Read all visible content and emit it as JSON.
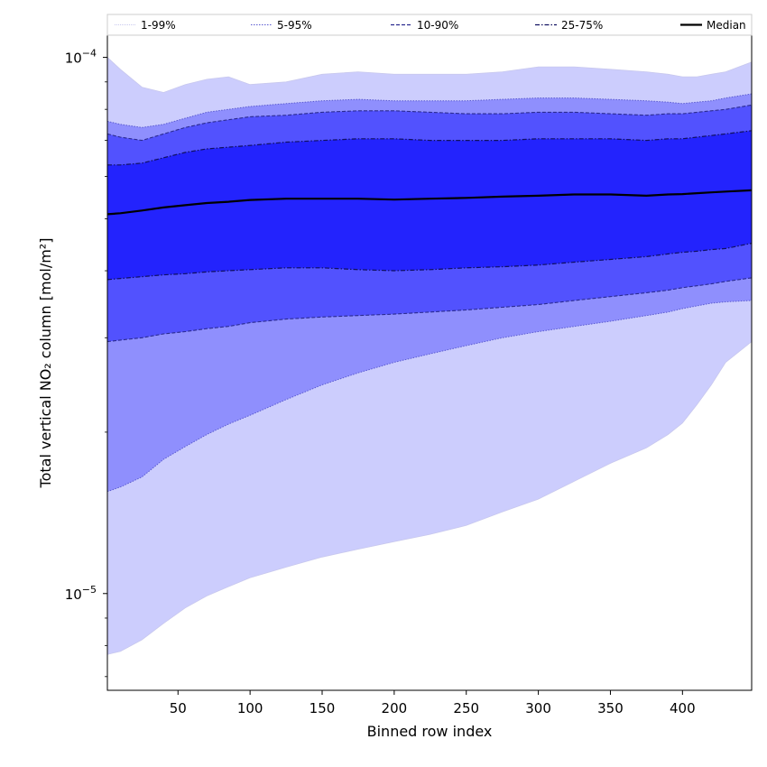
{
  "chart_data": {
    "type": "area",
    "xlabel": "Binned row index",
    "ylabel": "Total vertical NO₂ column [mol/m²]",
    "xlim": [
      1,
      448
    ],
    "ylim": [
      6.6e-06,
      0.00011
    ],
    "yscale": "log",
    "xticks": [
      50,
      100,
      150,
      200,
      250,
      300,
      350,
      400
    ],
    "yticks": [
      {
        "value": 1e-05,
        "label": "10",
        "exp": "−5"
      },
      {
        "value": 0.0001,
        "label": "10",
        "exp": "−4"
      }
    ],
    "legend_position": "top, spanning width (above plot)",
    "colors": {
      "band_1_99": "#cccdfd",
      "band_5_95": "#8f8ffd",
      "band_10_90": "#5252fe",
      "band_25_75": "#2323fd",
      "median": "#000000",
      "q_line_1_99": "#c8c8ee",
      "q_line_5_95": "#5a5ad0",
      "q_line_10_90": "#2a2a90",
      "q_line_25_75": "#101060"
    },
    "legend": [
      {
        "label": "1-99%",
        "style": "dotted-light"
      },
      {
        "label": "5-95%",
        "style": "dotted"
      },
      {
        "label": "10-90%",
        "style": "dashed"
      },
      {
        "label": "25-75%",
        "style": "dash-dot"
      },
      {
        "label": "Median",
        "style": "solid"
      }
    ],
    "x": [
      1,
      10,
      25,
      40,
      55,
      70,
      85,
      100,
      125,
      150,
      175,
      200,
      225,
      250,
      275,
      300,
      325,
      350,
      375,
      390,
      400,
      410,
      420,
      430,
      448
    ],
    "series": [
      {
        "key": "p99",
        "values": [
          0.0001,
          9.5e-05,
          8.8e-05,
          8.6e-05,
          8.9e-05,
          9.1e-05,
          9.2e-05,
          8.9e-05,
          9e-05,
          9.3e-05,
          9.4e-05,
          9.3e-05,
          9.3e-05,
          9.3e-05,
          9.4e-05,
          9.6e-05,
          9.6e-05,
          9.5e-05,
          9.4e-05,
          9.3e-05,
          9.2e-05,
          9.2e-05,
          9.3e-05,
          9.4e-05,
          9.8e-05
        ]
      },
      {
        "key": "p95",
        "values": [
          7.6e-05,
          7.5e-05,
          7.4e-05,
          7.5e-05,
          7.7e-05,
          7.9e-05,
          8e-05,
          8.1e-05,
          8.2e-05,
          8.3e-05,
          8.35e-05,
          8.3e-05,
          8.3e-05,
          8.3e-05,
          8.35e-05,
          8.4e-05,
          8.4e-05,
          8.35e-05,
          8.3e-05,
          8.25e-05,
          8.2e-05,
          8.25e-05,
          8.3e-05,
          8.4e-05,
          8.55e-05
        ]
      },
      {
        "key": "p90",
        "values": [
          7.2e-05,
          7.1e-05,
          7e-05,
          7.2e-05,
          7.4e-05,
          7.55e-05,
          7.65e-05,
          7.75e-05,
          7.8e-05,
          7.9e-05,
          7.95e-05,
          7.95e-05,
          7.9e-05,
          7.85e-05,
          7.85e-05,
          7.9e-05,
          7.9e-05,
          7.85e-05,
          7.8e-05,
          7.85e-05,
          7.85e-05,
          7.9e-05,
          7.95e-05,
          8e-05,
          8.15e-05
        ]
      },
      {
        "key": "p75",
        "values": [
          6.3e-05,
          6.3e-05,
          6.35e-05,
          6.5e-05,
          6.65e-05,
          6.75e-05,
          6.8e-05,
          6.85e-05,
          6.95e-05,
          7e-05,
          7.05e-05,
          7.05e-05,
          7e-05,
          7e-05,
          7e-05,
          7.05e-05,
          7.05e-05,
          7.05e-05,
          7e-05,
          7.05e-05,
          7.05e-05,
          7.1e-05,
          7.15e-05,
          7.2e-05,
          7.3e-05
        ]
      },
      {
        "key": "p50",
        "values": [
          5.1e-05,
          5.12e-05,
          5.18e-05,
          5.25e-05,
          5.3e-05,
          5.35e-05,
          5.38e-05,
          5.42e-05,
          5.45e-05,
          5.45e-05,
          5.45e-05,
          5.43e-05,
          5.45e-05,
          5.47e-05,
          5.5e-05,
          5.52e-05,
          5.55e-05,
          5.55e-05,
          5.52e-05,
          5.55e-05,
          5.56e-05,
          5.58e-05,
          5.6e-05,
          5.62e-05,
          5.65e-05
        ]
      },
      {
        "key": "p25",
        "values": [
          3.85e-05,
          3.87e-05,
          3.9e-05,
          3.93e-05,
          3.95e-05,
          3.98e-05,
          4e-05,
          4.02e-05,
          4.05e-05,
          4.05e-05,
          4.02e-05,
          4e-05,
          4.02e-05,
          4.05e-05,
          4.07e-05,
          4.1e-05,
          4.15e-05,
          4.2e-05,
          4.25e-05,
          4.3e-05,
          4.33e-05,
          4.35e-05,
          4.38e-05,
          4.4e-05,
          4.5e-05
        ]
      },
      {
        "key": "p10",
        "values": [
          2.95e-05,
          2.97e-05,
          3e-05,
          3.05e-05,
          3.08e-05,
          3.12e-05,
          3.15e-05,
          3.2e-05,
          3.25e-05,
          3.28e-05,
          3.3e-05,
          3.32e-05,
          3.35e-05,
          3.38e-05,
          3.42e-05,
          3.46e-05,
          3.52e-05,
          3.58e-05,
          3.64e-05,
          3.68e-05,
          3.72e-05,
          3.75e-05,
          3.78e-05,
          3.82e-05,
          3.88e-05
        ]
      },
      {
        "key": "p5",
        "values": [
          1.55e-05,
          1.58e-05,
          1.65e-05,
          1.78e-05,
          1.88e-05,
          1.98e-05,
          2.07e-05,
          2.15e-05,
          2.3e-05,
          2.45e-05,
          2.58e-05,
          2.7e-05,
          2.8e-05,
          2.9e-05,
          3e-05,
          3.08e-05,
          3.15e-05,
          3.22e-05,
          3.3e-05,
          3.35e-05,
          3.4e-05,
          3.44e-05,
          3.48e-05,
          3.5e-05,
          3.52e-05
        ]
      },
      {
        "key": "p1",
        "values": [
          7.7e-06,
          7.8e-06,
          8.2e-06,
          8.8e-06,
          9.4e-06,
          9.9e-06,
          1.03e-05,
          1.07e-05,
          1.12e-05,
          1.17e-05,
          1.21e-05,
          1.25e-05,
          1.29e-05,
          1.34e-05,
          1.42e-05,
          1.5e-05,
          1.62e-05,
          1.75e-05,
          1.87e-05,
          1.98e-05,
          2.08e-05,
          2.25e-05,
          2.45e-05,
          2.7e-05,
          2.95e-05
        ]
      }
    ]
  }
}
